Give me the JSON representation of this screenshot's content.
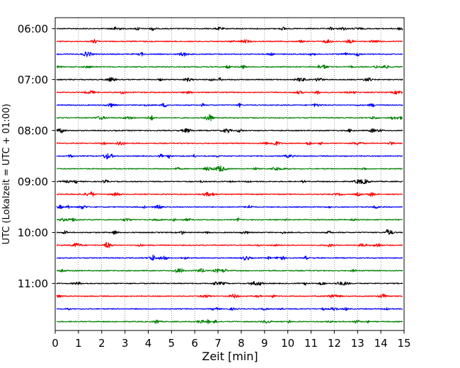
{
  "chart_data": {
    "type": "line",
    "subtype": "helicorder",
    "xlabel": "Zeit  [min]",
    "ylabel": "UTC (Lokalzeit = UTC + 01:00)",
    "xlim": [
      0,
      15
    ],
    "x_ticks": [
      0,
      1,
      2,
      3,
      4,
      5,
      6,
      7,
      8,
      9,
      10,
      11,
      12,
      13,
      14,
      15
    ],
    "trace_interval_min": 15,
    "hour_tick_labels": [
      "06:00",
      "07:00",
      "08:00",
      "09:00",
      "10:00",
      "11:00"
    ],
    "grid": {
      "x": "dotted",
      "y": "off"
    },
    "trace_color_cycle": [
      "#000000",
      "#ff0000",
      "#0000ff",
      "#008000"
    ],
    "traces": [
      "06:00",
      "06:15",
      "06:30",
      "06:45",
      "07:00",
      "07:15",
      "07:30",
      "07:45",
      "08:00",
      "08:15",
      "08:30",
      "08:45",
      "09:00",
      "09:15",
      "09:30",
      "09:45",
      "10:00",
      "10:15",
      "10:30",
      "10:45",
      "11:00",
      "11:15",
      "11:30",
      "11:45"
    ]
  }
}
